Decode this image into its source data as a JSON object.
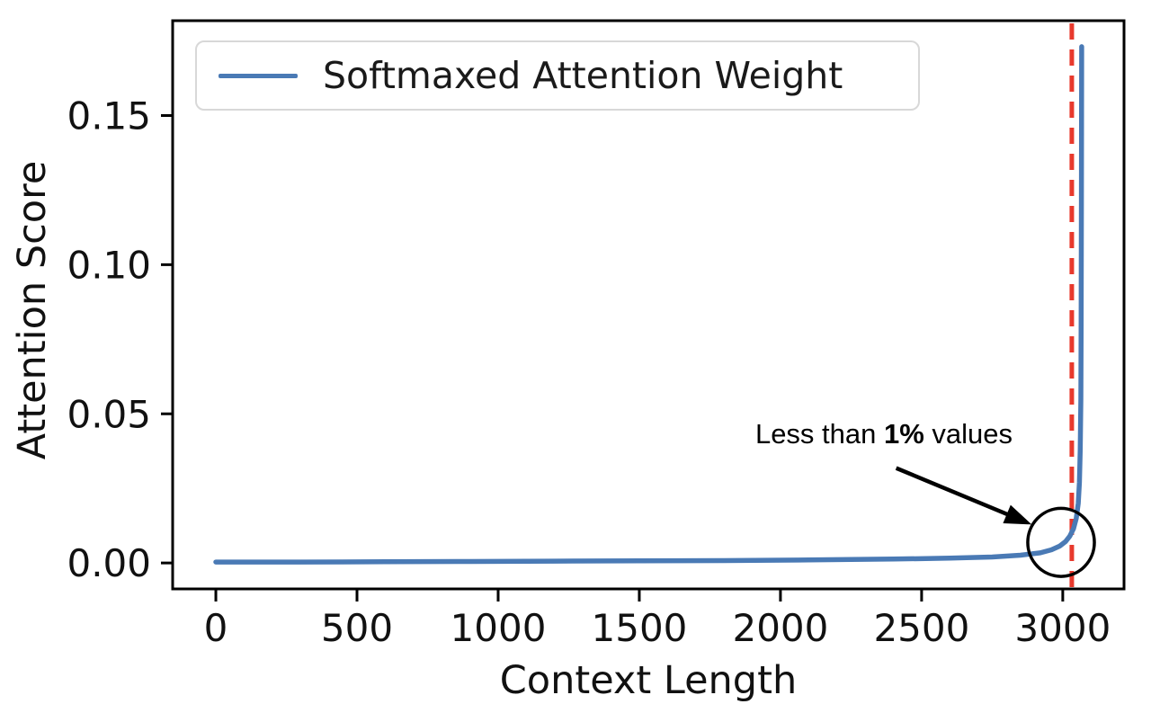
{
  "chart_data": {
    "type": "line",
    "title": "",
    "xlabel": "Context Length",
    "ylabel": "Attention Score",
    "xlim": [
      -153,
      3217
    ],
    "ylim": [
      -0.0087,
      0.1818
    ],
    "grid": false,
    "xticks": {
      "values": [
        0,
        500,
        1000,
        1500,
        2000,
        2500,
        3000
      ],
      "labels": [
        "0",
        "500",
        "1000",
        "1500",
        "2000",
        "2500",
        "3000"
      ]
    },
    "yticks": {
      "values": [
        0,
        0.05,
        0.1,
        0.15
      ],
      "labels": [
        "0.00",
        "0.05",
        "0.10",
        "0.15"
      ]
    },
    "legend": {
      "position": "upper left",
      "entries": [
        {
          "label": "Softmaxed Attention Weight",
          "color": "#4a7ab5",
          "style": "solid"
        }
      ]
    },
    "series": [
      {
        "name": "Softmaxed Attention Weight",
        "color": "#4a7ab5",
        "points": [
          [
            0,
            0.0003
          ],
          [
            300,
            0.0003
          ],
          [
            600,
            0.0004
          ],
          [
            900,
            0.0005
          ],
          [
            1200,
            0.0006
          ],
          [
            1500,
            0.0007
          ],
          [
            1800,
            0.0008
          ],
          [
            2100,
            0.001
          ],
          [
            2400,
            0.0013
          ],
          [
            2600,
            0.0016
          ],
          [
            2750,
            0.002
          ],
          [
            2850,
            0.0026
          ],
          [
            2920,
            0.0034
          ],
          [
            2960,
            0.0044
          ],
          [
            2990,
            0.0057
          ],
          [
            3010,
            0.0072
          ],
          [
            3025,
            0.009
          ],
          [
            3038,
            0.0115
          ],
          [
            3048,
            0.015
          ],
          [
            3055,
            0.02
          ],
          [
            3059,
            0.027
          ],
          [
            3062,
            0.038
          ],
          [
            3064,
            0.055
          ],
          [
            3065,
            0.08
          ],
          [
            3066,
            0.12
          ],
          [
            3067,
            0.1731
          ]
        ]
      }
    ],
    "vline": {
      "x": 3032,
      "color": "#e8392d",
      "style": "dashed"
    },
    "annotations": {
      "text": {
        "prefix": "Less than ",
        "bold": "1%",
        "suffix": " values",
        "color": "#000000"
      },
      "arrow": {
        "from": [
          2410,
          0.0318
        ],
        "to": [
          2890,
          0.0129
        ],
        "color": "#000000"
      },
      "ellipse": {
        "cx": 2994,
        "cy": 0.0069,
        "rx": 118,
        "ry": 0.0114,
        "color": "#000000"
      }
    },
    "colors": {
      "spine": "#000000",
      "tick_label": "#111111",
      "legend_border": "#d8d8d8",
      "background": "#ffffff"
    }
  }
}
